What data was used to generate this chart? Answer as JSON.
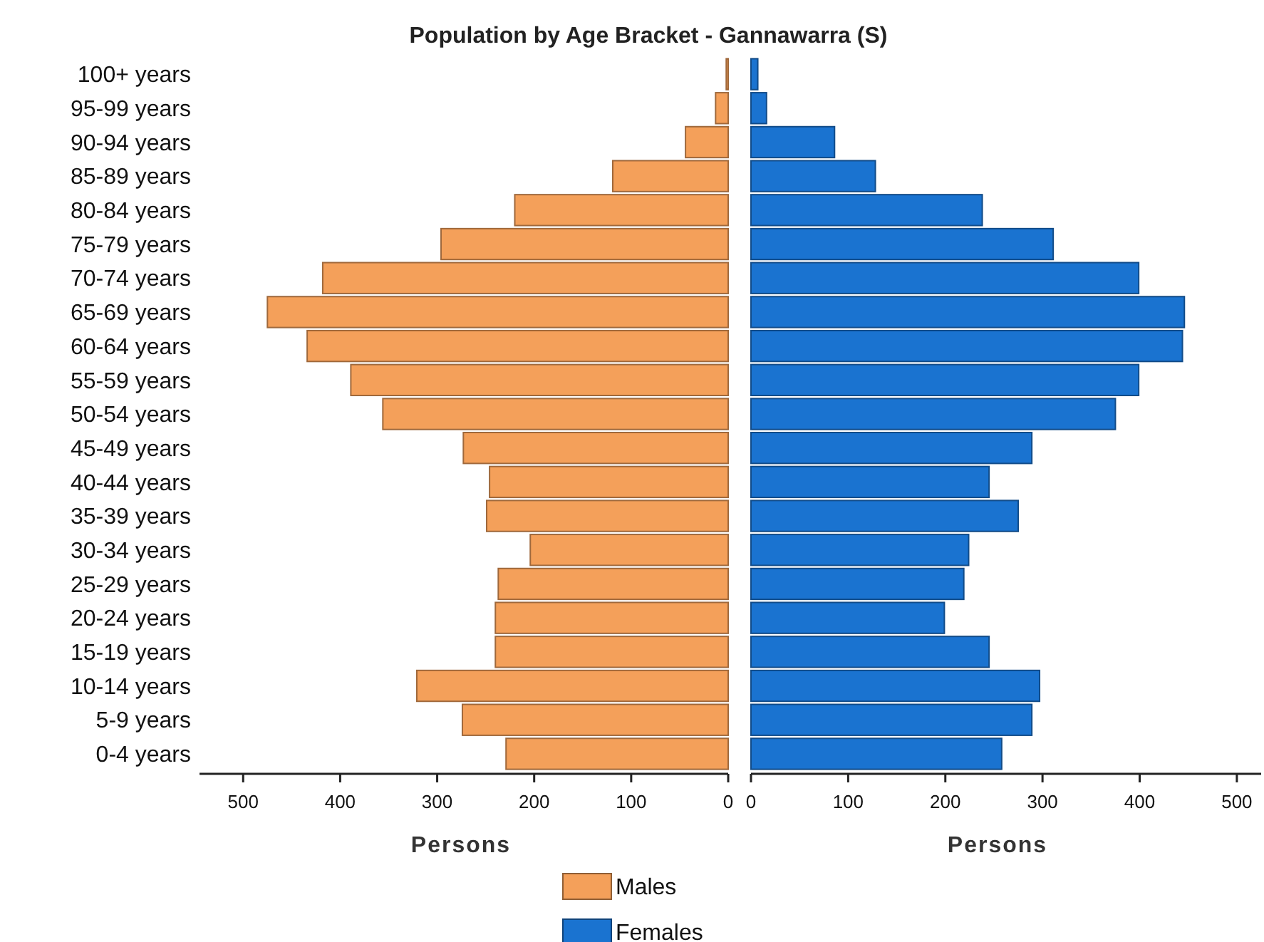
{
  "chart_data": [
    {
      "type": "bar",
      "orientation": "horizontal",
      "title": "Population by Age Bracket - Gannawarra (S)",
      "xlabel": "Persons",
      "categories": [
        "100+ years",
        "95-99 years",
        "90-94 years",
        "85-89 years",
        "80-84 years",
        "75-79 years",
        "70-74 years",
        "65-69 years",
        "60-64 years",
        "55-59 years",
        "50-54 years",
        "45-49 years",
        "40-44 years",
        "35-39 years",
        "30-34 years",
        "25-29 years",
        "20-24 years",
        "15-19 years",
        "10-14 years",
        "5-9 years",
        "0-4 years"
      ],
      "xlim": [
        545,
        0
      ],
      "xticks": [
        500,
        400,
        300,
        200,
        100,
        0
      ],
      "legend": "bottom",
      "grid": false,
      "series": [
        {
          "name": "Males",
          "color": "#f4a05a",
          "values": [
            2,
            13,
            44,
            119,
            220,
            296,
            418,
            475,
            434,
            389,
            356,
            273,
            246,
            249,
            204,
            237,
            240,
            240,
            321,
            274,
            229
          ]
        }
      ]
    },
    {
      "type": "bar",
      "orientation": "horizontal",
      "xlabel": "Persons",
      "tick_labels": "x",
      "categories": [
        "100+ years",
        "95-99 years",
        "90-94 years",
        "85-89 years",
        "80-84 years",
        "75-79 years",
        "70-74 years",
        "65-69 years",
        "60-64 years",
        "55-59 years",
        "50-54 years",
        "45-49 years",
        "40-44 years",
        "35-39 years",
        "30-34 years",
        "25-29 years",
        "20-24 years",
        "15-19 years",
        "10-14 years",
        "5-9 years",
        "0-4 years"
      ],
      "xlim": [
        0,
        525
      ],
      "xticks": [
        0,
        100,
        200,
        300,
        400,
        500
      ],
      "legend": "bottom",
      "grid": false,
      "series": [
        {
          "name": "Females",
          "color": "#1a73d0",
          "values": [
            7,
            16,
            86,
            128,
            238,
            311,
            399,
            446,
            444,
            399,
            375,
            289,
            245,
            275,
            224,
            219,
            199,
            245,
            297,
            289,
            258
          ]
        }
      ]
    }
  ]
}
